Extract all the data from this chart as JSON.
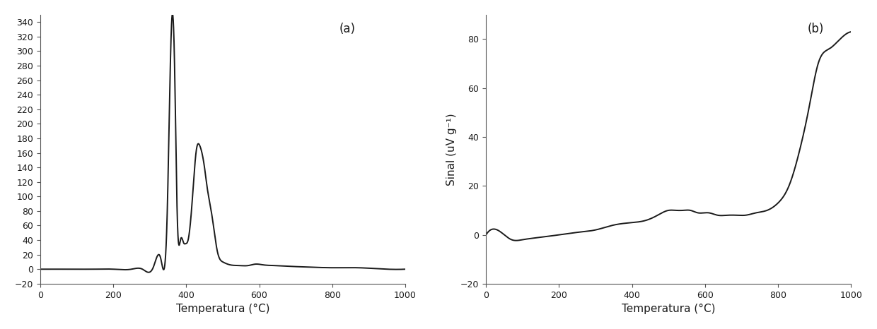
{
  "panel_a": {
    "label": "(a)",
    "xlabel": "Temperatura (°C)",
    "ylabel": "",
    "xlim": [
      0,
      1000
    ],
    "ylim": [
      -20,
      350
    ],
    "yticks": [
      -20,
      0,
      20,
      40,
      60,
      80,
      100,
      120,
      140,
      160,
      180,
      200,
      220,
      240,
      260,
      280,
      300,
      320,
      340
    ],
    "xticks": [
      0,
      200,
      400,
      600,
      800,
      1000
    ],
    "curve_color": "#1a1a1a",
    "curve_lw": 1.4
  },
  "panel_b": {
    "label": "(b)",
    "xlabel": "Temperatura (°C)",
    "ylabel": "Sinal (uV g⁻¹)",
    "xlim": [
      0,
      1000
    ],
    "ylim": [
      -20,
      90
    ],
    "yticks": [
      -20,
      0,
      20,
      40,
      60,
      80
    ],
    "xticks": [
      0,
      200,
      400,
      600,
      800,
      1000
    ],
    "curve_color": "#1a1a1a",
    "curve_lw": 1.4
  },
  "background_color": "#ffffff",
  "font_color": "#1a1a1a",
  "figsize": [
    12.4,
    4.66
  ],
  "dpi": 100
}
